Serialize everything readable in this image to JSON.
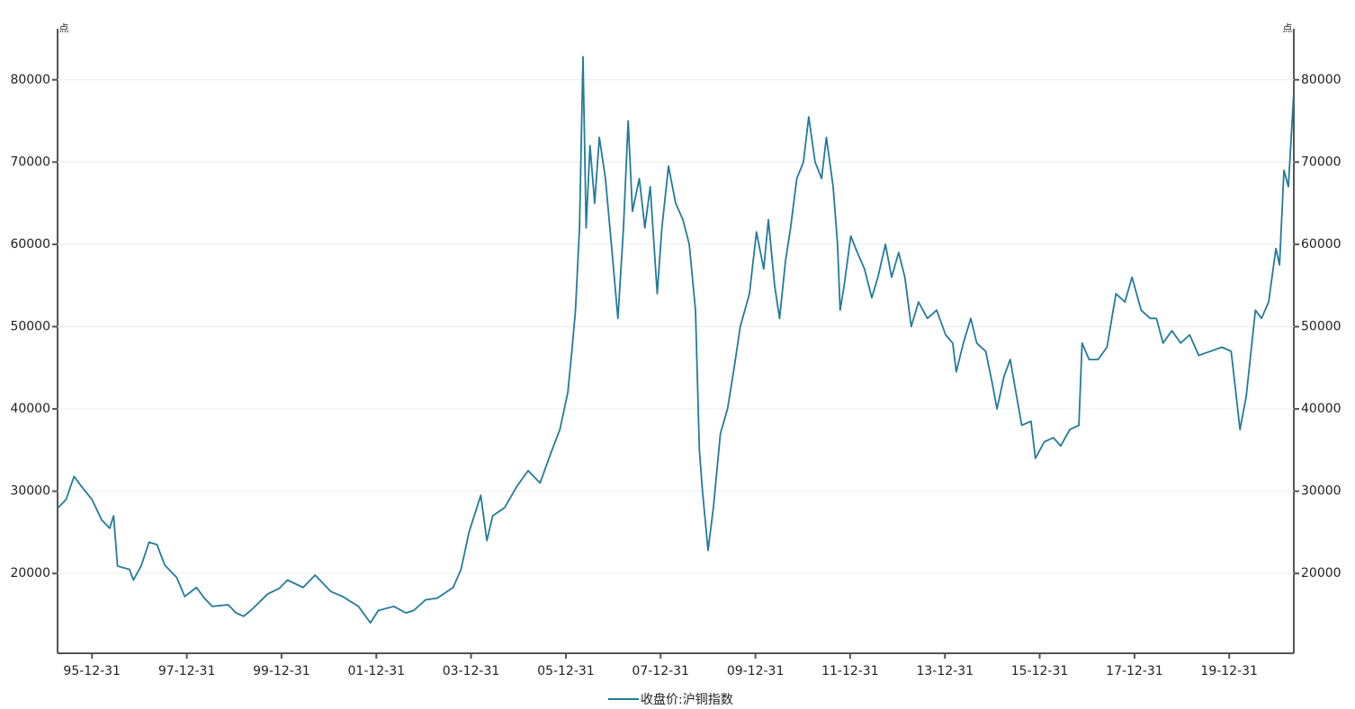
{
  "chart_data": {
    "type": "line",
    "y_label": "点",
    "y2_label": "点",
    "x": [
      "1995-04-15",
      "1995-06-15",
      "1995-08-15",
      "1995-10-15",
      "1995-12-31",
      "1996-03-15",
      "1996-05-15",
      "1996-06-15",
      "1996-07-15",
      "1996-10-15",
      "1996-11-15",
      "1997-01-15",
      "1997-03-15",
      "1997-05-15",
      "1997-07-15",
      "1997-10-15",
      "1997-12-15",
      "1998-03-15",
      "1998-05-15",
      "1998-07-15",
      "1998-11-15",
      "1999-01-15",
      "1999-03-15",
      "1999-05-15",
      "1999-09-15",
      "1999-12-15",
      "2000-02-15",
      "2000-06-15",
      "2000-09-15",
      "2001-01-15",
      "2001-04-15",
      "2001-08-15",
      "2001-11-15",
      "2002-01-15",
      "2002-05-15",
      "2002-08-15",
      "2002-10-15",
      "2003-01-15",
      "2003-04-15",
      "2003-08-15",
      "2003-10-15",
      "2003-12-15",
      "2004-03-15",
      "2004-05-01",
      "2004-06-15",
      "2004-09-15",
      "2004-12-15",
      "2005-03-15",
      "2005-06-15",
      "2005-09-15",
      "2005-11-15",
      "2006-01-15",
      "2006-02-15",
      "2006-03-15",
      "2006-04-15",
      "2006-05-12",
      "2006-06-05",
      "2006-07-05",
      "2006-08-10",
      "2006-09-15",
      "2006-11-01",
      "2006-12-28",
      "2007-02-05",
      "2007-03-20",
      "2007-04-25",
      "2007-05-28",
      "2007-07-20",
      "2007-09-01",
      "2007-10-12",
      "2007-12-05",
      "2008-01-10",
      "2008-03-01",
      "2008-04-25",
      "2008-06-20",
      "2008-08-08",
      "2008-09-25",
      "2008-10-25",
      "2008-11-18",
      "2008-12-31",
      "2009-02-10",
      "2009-04-05",
      "2009-05-30",
      "2009-07-20",
      "2009-09-05",
      "2009-11-15",
      "2010-01-08",
      "2010-03-05",
      "2010-04-10",
      "2010-05-28",
      "2010-07-05",
      "2010-08-20",
      "2010-09-28",
      "2010-11-15",
      "2011-01-05",
      "2011-02-15",
      "2011-04-05",
      "2011-05-25",
      "2011-07-01",
      "2011-08-22",
      "2011-09-25",
      "2011-10-15",
      "2011-11-15",
      "2012-01-05",
      "2012-02-25",
      "2012-04-20",
      "2012-06-15",
      "2012-08-01",
      "2012-09-28",
      "2012-11-15",
      "2013-01-08",
      "2013-02-25",
      "2013-04-15",
      "2013-06-10",
      "2013-08-18",
      "2013-10-28",
      "2014-01-05",
      "2014-03-01",
      "2014-03-28",
      "2014-05-22",
      "2014-07-18",
      "2014-09-02",
      "2014-11-10",
      "2015-01-01",
      "2015-02-05",
      "2015-04-01",
      "2015-05-18",
      "2015-07-01",
      "2015-08-15",
      "2015-10-25",
      "2015-11-28",
      "2016-02-05",
      "2016-04-15",
      "2016-06-10",
      "2016-08-20",
      "2016-10-28",
      "2016-11-22",
      "2017-01-15",
      "2017-03-25",
      "2017-06-02",
      "2017-08-10",
      "2017-10-18",
      "2017-12-12",
      "2018-02-20",
      "2018-05-01",
      "2018-06-18",
      "2018-08-08",
      "2018-10-15",
      "2018-12-22",
      "2019-03-01",
      "2019-05-10",
      "2019-08-08",
      "2019-11-05",
      "2020-01-15",
      "2020-02-20",
      "2020-03-23",
      "2020-05-10",
      "2020-07-20",
      "2020-09-05",
      "2020-10-30",
      "2020-12-25",
      "2021-01-22",
      "2021-02-25",
      "2021-03-31",
      "2021-05-10"
    ],
    "series": [
      {
        "name": "收盘价:沪铜指数",
        "color": "#237b9b",
        "values": [
          28000,
          29000,
          31800,
          30500,
          29000,
          26500,
          25500,
          27000,
          20900,
          20500,
          19200,
          21000,
          23800,
          23500,
          21000,
          19500,
          17200,
          18300,
          17000,
          16000,
          16200,
          15200,
          14800,
          15600,
          17500,
          18200,
          19200,
          18300,
          19800,
          17800,
          17200,
          16000,
          14000,
          15500,
          16000,
          15200,
          15500,
          16800,
          17000,
          18300,
          20500,
          25000,
          29500,
          24000,
          27000,
          28000,
          30500,
          32500,
          31000,
          35000,
          37500,
          42000,
          47000,
          52000,
          62000,
          82800,
          62000,
          72000,
          65000,
          73000,
          68000,
          58000,
          51000,
          62000,
          75000,
          64000,
          68000,
          62000,
          67000,
          54000,
          62000,
          69500,
          65000,
          63000,
          60000,
          52000,
          35000,
          30000,
          22800,
          28000,
          37000,
          40000,
          45000,
          50000,
          54000,
          61500,
          57000,
          63000,
          55000,
          51000,
          58000,
          62000,
          68000,
          70000,
          75500,
          70000,
          68000,
          73000,
          67000,
          60000,
          52000,
          55000,
          61000,
          59000,
          57000,
          53500,
          56000,
          60000,
          56000,
          59000,
          56000,
          50000,
          53000,
          51000,
          52000,
          49000,
          48000,
          44500,
          48000,
          51000,
          48000,
          47000,
          43000,
          40000,
          44000,
          46000,
          42000,
          38000,
          38500,
          34000,
          36000,
          36500,
          35500,
          37500,
          38000,
          48000,
          46000,
          46000,
          47500,
          54000,
          53000,
          56000,
          52000,
          51000,
          51000,
          48000,
          49500,
          48000,
          49000,
          46500,
          47000,
          47500,
          47000,
          42000,
          37500,
          41500,
          52000,
          51000,
          53000,
          59500,
          57500,
          69000,
          67000,
          78000
        ]
      }
    ],
    "xlim": [
      "1995-04-10",
      "2021-05-12"
    ],
    "xticks": [
      {
        "value": "1995-12-31",
        "label": "95-12-31"
      },
      {
        "value": "1997-12-31",
        "label": "97-12-31"
      },
      {
        "value": "1999-12-31",
        "label": "99-12-31"
      },
      {
        "value": "2001-12-31",
        "label": "01-12-31"
      },
      {
        "value": "2003-12-31",
        "label": "03-12-31"
      },
      {
        "value": "2005-12-31",
        "label": "05-12-31"
      },
      {
        "value": "2007-12-31",
        "label": "07-12-31"
      },
      {
        "value": "2009-12-31",
        "label": "09-12-31"
      },
      {
        "value": "2011-12-31",
        "label": "11-12-31"
      },
      {
        "value": "2013-12-31",
        "label": "13-12-31"
      },
      {
        "value": "2015-12-31",
        "label": "15-12-31"
      },
      {
        "value": "2017-12-31",
        "label": "17-12-31"
      },
      {
        "value": "2019-12-31",
        "label": "19-12-31"
      }
    ],
    "ylim": [
      10300,
      86200
    ],
    "yticks": [
      20000,
      30000,
      40000,
      50000,
      60000,
      70000,
      80000
    ],
    "y2lim": [
      10300,
      86200
    ],
    "y2ticks": [
      20000,
      30000,
      40000,
      50000,
      60000,
      70000,
      80000
    ],
    "grid": true,
    "legend": "bottom"
  }
}
